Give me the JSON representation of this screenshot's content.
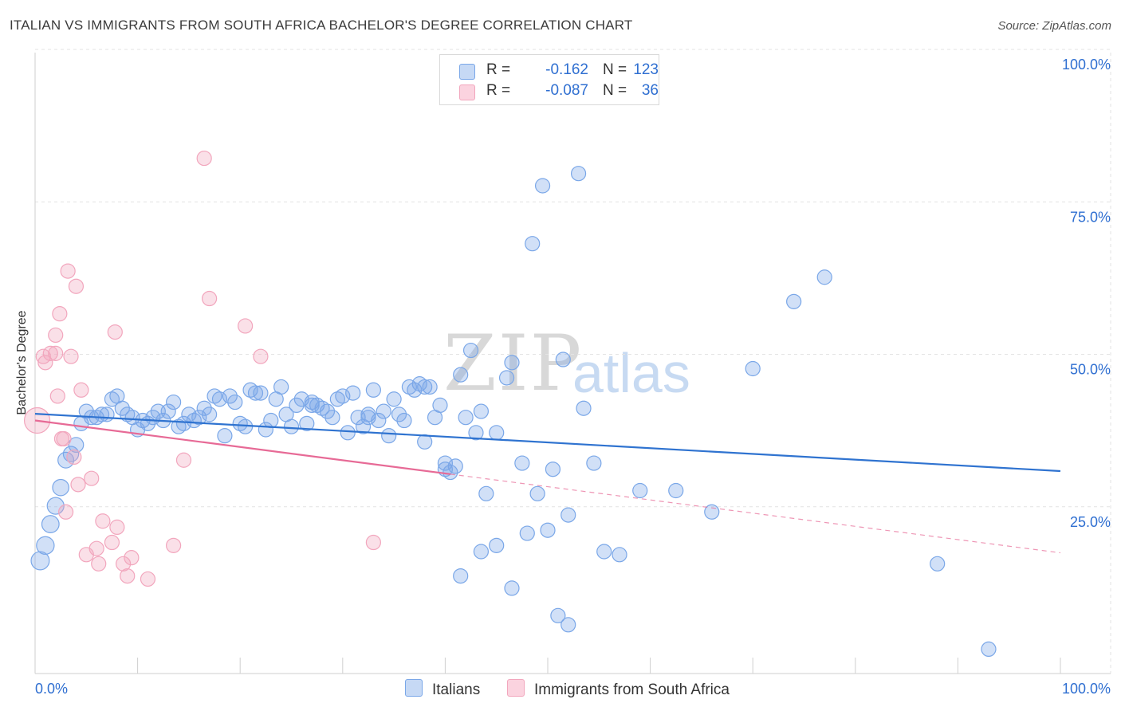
{
  "header": {
    "title": "ITALIAN VS IMMIGRANTS FROM SOUTH AFRICA BACHELOR'S DEGREE CORRELATION CHART",
    "source": "Source: ZipAtlas.com"
  },
  "watermark": {
    "zip": "ZIP",
    "atlas": "atlas"
  },
  "legend": {
    "series": [
      {
        "name": "Italians",
        "r_label": "R =",
        "r_value": "-0.162",
        "n_label": "N =",
        "n_value": "123",
        "color": "#7aa7e8"
      },
      {
        "name": "Immigrants from South Africa",
        "r_label": "R =",
        "r_value": "-0.087",
        "n_label": "N =",
        "n_value": "36",
        "color": "#f2a6bd"
      }
    ]
  },
  "chart_data": {
    "type": "scatter",
    "title": "ITALIAN VS IMMIGRANTS FROM SOUTH AFRICA BACHELOR'S DEGREE CORRELATION CHART",
    "xlabel": "",
    "ylabel": "Bachelor's Degree",
    "xlim": [
      0,
      100
    ],
    "ylim": [
      0,
      100
    ],
    "x_tick_labels": [
      "0.0%",
      "100.0%"
    ],
    "y_tick_labels": [
      {
        "value": 25,
        "label": "25.0%"
      },
      {
        "value": 50,
        "label": "50.0%"
      },
      {
        "value": 75,
        "label": "75.0%"
      },
      {
        "value": 100,
        "label": "100.0%"
      }
    ],
    "series": [
      {
        "name": "Italians",
        "color": "#7aa7e8",
        "line_color": "#2f73d0",
        "trend": {
          "x0": 0,
          "y0": 42.6,
          "x1": 100,
          "y1": 33.2
        },
        "points": [
          [
            0.5,
            18.5
          ],
          [
            1,
            21
          ],
          [
            1.5,
            24.5
          ],
          [
            2,
            27.5
          ],
          [
            2.5,
            30.5
          ],
          [
            3,
            35
          ],
          [
            3.5,
            36
          ],
          [
            4,
            37.5
          ],
          [
            4.5,
            41
          ],
          [
            5,
            43
          ],
          [
            5.5,
            42
          ],
          [
            6,
            42
          ],
          [
            6.5,
            42.5
          ],
          [
            7,
            42.5
          ],
          [
            7.5,
            45
          ],
          [
            8,
            45.5
          ],
          [
            8.5,
            43.5
          ],
          [
            9,
            42.5
          ],
          [
            9.5,
            42
          ],
          [
            10,
            40
          ],
          [
            10.5,
            41.5
          ],
          [
            11,
            41
          ],
          [
            11.5,
            42
          ],
          [
            12,
            43
          ],
          [
            12.5,
            41.5
          ],
          [
            13,
            43
          ],
          [
            13.5,
            44.5
          ],
          [
            14,
            40.5
          ],
          [
            14.5,
            41
          ],
          [
            15,
            42.5
          ],
          [
            15.5,
            41.5
          ],
          [
            16,
            42
          ],
          [
            16.5,
            43.5
          ],
          [
            17,
            42.5
          ],
          [
            17.5,
            45.5
          ],
          [
            18,
            45
          ],
          [
            18.5,
            39
          ],
          [
            19,
            45.5
          ],
          [
            19.5,
            44.5
          ],
          [
            20,
            41
          ],
          [
            20.5,
            40.5
          ],
          [
            21,
            46.5
          ],
          [
            21.5,
            46
          ],
          [
            22,
            46
          ],
          [
            22.5,
            40
          ],
          [
            23,
            41.5
          ],
          [
            23.5,
            45
          ],
          [
            24,
            47
          ],
          [
            24.5,
            42.5
          ],
          [
            25,
            40.5
          ],
          [
            25.5,
            44
          ],
          [
            26,
            45
          ],
          [
            26.5,
            41
          ],
          [
            27,
            44.5
          ],
          [
            27.5,
            44
          ],
          [
            28,
            43.5
          ],
          [
            28.5,
            43
          ],
          [
            29,
            42
          ],
          [
            29.5,
            45
          ],
          [
            30,
            45.5
          ],
          [
            30.5,
            39.5
          ],
          [
            31,
            46
          ],
          [
            31.5,
            42
          ],
          [
            32,
            40.5
          ],
          [
            32.5,
            42
          ],
          [
            33,
            46.5
          ],
          [
            33.5,
            41.5
          ],
          [
            34,
            43
          ],
          [
            34.5,
            39
          ],
          [
            35,
            45
          ],
          [
            35.5,
            42.5
          ],
          [
            36,
            41.5
          ],
          [
            36.5,
            47
          ],
          [
            37,
            46.5
          ],
          [
            37.5,
            47.5
          ],
          [
            38,
            38
          ],
          [
            38.5,
            47
          ],
          [
            39,
            42
          ],
          [
            39.5,
            44
          ],
          [
            40,
            34.5
          ],
          [
            40.5,
            33
          ],
          [
            41,
            34
          ],
          [
            41.5,
            49
          ],
          [
            42,
            42
          ],
          [
            42.5,
            53
          ],
          [
            43,
            39.5
          ],
          [
            43.5,
            43
          ],
          [
            44,
            29.5
          ],
          [
            45,
            39.5
          ],
          [
            46,
            48.5
          ],
          [
            46.5,
            51
          ],
          [
            47.5,
            34.5
          ],
          [
            48,
            23
          ],
          [
            48.5,
            70.5
          ],
          [
            49,
            29.5
          ],
          [
            49.5,
            80
          ],
          [
            50,
            23.5
          ],
          [
            50.5,
            33.5
          ],
          [
            51,
            9.5
          ],
          [
            51.5,
            51.5
          ],
          [
            52,
            8
          ],
          [
            53,
            82
          ],
          [
            53.5,
            43.5
          ],
          [
            54.5,
            34.5
          ],
          [
            59,
            30
          ],
          [
            62.5,
            30
          ],
          [
            66,
            26.5
          ],
          [
            70,
            50
          ],
          [
            74,
            61
          ],
          [
            77,
            65
          ],
          [
            88,
            18
          ],
          [
            93,
            4
          ],
          [
            40,
            33.5
          ],
          [
            45,
            21
          ],
          [
            46.5,
            14
          ],
          [
            52,
            26
          ],
          [
            57,
            19.5
          ],
          [
            55.5,
            20
          ],
          [
            43.5,
            20
          ],
          [
            41.5,
            16
          ],
          [
            32.5,
            42.5
          ],
          [
            38,
            47
          ],
          [
            27,
            44
          ]
        ]
      },
      {
        "name": "Immigrants from South Africa",
        "color": "#f2a6bd",
        "line_color": "#e76a96",
        "trend": {
          "x0": 0,
          "y0": 41.5,
          "x1": 40.5,
          "y1": 32.7
        },
        "trend_dashed": {
          "x0": 40.5,
          "y0": 32.7,
          "x1": 100,
          "y1": 19.8
        },
        "points": [
          [
            0.2,
            41.5
          ],
          [
            0.8,
            52
          ],
          [
            1,
            51
          ],
          [
            1.5,
            52.5
          ],
          [
            2,
            55.5
          ],
          [
            2.2,
            45.5
          ],
          [
            2.4,
            59
          ],
          [
            2.6,
            38.5
          ],
          [
            2.8,
            38.5
          ],
          [
            3,
            26.5
          ],
          [
            3.2,
            66
          ],
          [
            3.5,
            52
          ],
          [
            3.8,
            35.5
          ],
          [
            4,
            63.5
          ],
          [
            4.2,
            31
          ],
          [
            4.5,
            46.5
          ],
          [
            5,
            19.5
          ],
          [
            5.5,
            32
          ],
          [
            6,
            20.5
          ],
          [
            6.2,
            18
          ],
          [
            6.6,
            25
          ],
          [
            7.5,
            21.5
          ],
          [
            7.8,
            56
          ],
          [
            8,
            24
          ],
          [
            8.6,
            18
          ],
          [
            9,
            16
          ],
          [
            9.4,
            19
          ],
          [
            11,
            15.5
          ],
          [
            13.5,
            21
          ],
          [
            14.5,
            35
          ],
          [
            16.5,
            84.5
          ],
          [
            17,
            61.5
          ],
          [
            20.5,
            57
          ],
          [
            22,
            52
          ],
          [
            33,
            21.5
          ],
          [
            2,
            52.5
          ]
        ]
      }
    ]
  }
}
